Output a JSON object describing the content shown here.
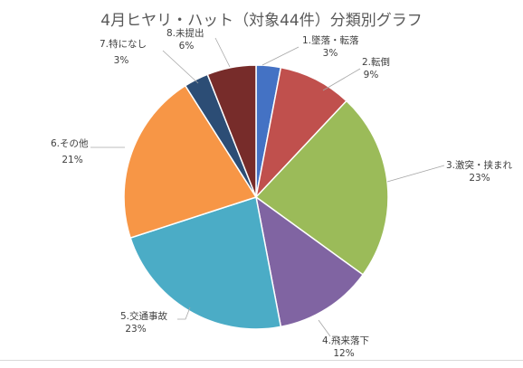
{
  "chart_data": {
    "type": "pie",
    "title": "4月ヒヤリ・ハット（対象44件）分類別グラフ",
    "slices": [
      {
        "label": "1.墜落・転落",
        "percent_label": "3%",
        "value": 3,
        "color": "#4472c4"
      },
      {
        "label": "2.転倒",
        "percent_label": "9%",
        "value": 9,
        "color": "#c0504d"
      },
      {
        "label": "3.激突・挟まれ",
        "percent_label": "23%",
        "value": 23,
        "color": "#9bbb59"
      },
      {
        "label": "4.飛来落下",
        "percent_label": "12%",
        "value": 12,
        "color": "#8064a2"
      },
      {
        "label": "5.交通事故",
        "percent_label": "23%",
        "value": 23,
        "color": "#4bacc6"
      },
      {
        "label": "6.その他",
        "percent_label": "21%",
        "value": 21,
        "color": "#f79646"
      },
      {
        "label": "7.特になし",
        "percent_label": "3%",
        "value": 3,
        "color": "#2c4d75"
      },
      {
        "label": "8.未提出",
        "percent_label": "6%",
        "value": 6,
        "color": "#772c2a"
      }
    ],
    "legend": "none",
    "start_angle_deg": 0,
    "direction": "clockwise"
  }
}
